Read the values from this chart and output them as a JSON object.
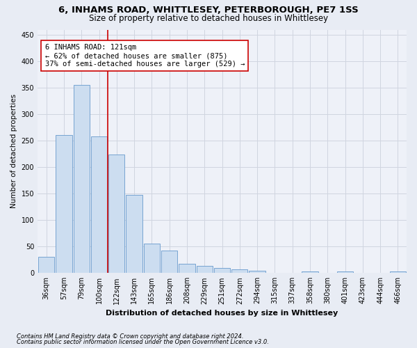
{
  "title1": "6, INHAMS ROAD, WHITTLESEY, PETERBOROUGH, PE7 1SS",
  "title2": "Size of property relative to detached houses in Whittlesey",
  "xlabel": "Distribution of detached houses by size in Whittlesey",
  "ylabel": "Number of detached properties",
  "footnote1": "Contains HM Land Registry data © Crown copyright and database right 2024.",
  "footnote2": "Contains public sector information licensed under the Open Government Licence v3.0.",
  "bar_labels": [
    "36sqm",
    "57sqm",
    "79sqm",
    "100sqm",
    "122sqm",
    "143sqm",
    "165sqm",
    "186sqm",
    "208sqm",
    "229sqm",
    "251sqm",
    "272sqm",
    "294sqm",
    "315sqm",
    "337sqm",
    "358sqm",
    "380sqm",
    "401sqm",
    "423sqm",
    "444sqm",
    "466sqm"
  ],
  "bar_values": [
    30,
    261,
    355,
    258,
    224,
    148,
    56,
    43,
    18,
    13,
    9,
    7,
    5,
    0,
    0,
    3,
    0,
    3,
    0,
    0,
    3
  ],
  "bar_color": "#ccddf0",
  "bar_edge_color": "#6699cc",
  "vline_x": 3.5,
  "vline_color": "#cc0000",
  "annotation_line1": "6 INHAMS ROAD: 121sqm",
  "annotation_line2": "← 62% of detached houses are smaller (875)",
  "annotation_line3": "37% of semi-detached houses are larger (529) →",
  "ylim_max": 460,
  "yticks": [
    0,
    50,
    100,
    150,
    200,
    250,
    300,
    350,
    400,
    450
  ],
  "bg_color": "#e8ecf4",
  "plot_bg_color": "#eef1f8",
  "grid_color": "#d0d5e0",
  "title1_fontsize": 9.5,
  "title2_fontsize": 8.5,
  "axis_label_fontsize": 7.5,
  "tick_fontsize": 7,
  "annotation_fontsize": 7.5,
  "footnote_fontsize": 6
}
